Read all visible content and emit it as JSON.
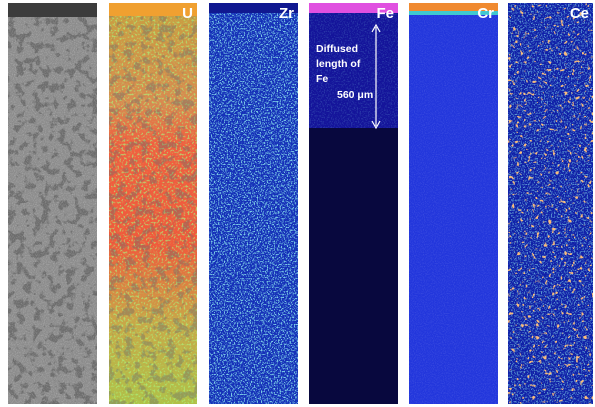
{
  "element_maps": [
    {
      "label": "U"
    },
    {
      "label": "Zr"
    },
    {
      "label": "Fe"
    },
    {
      "label": "Cr"
    },
    {
      "label": "Ce"
    }
  ],
  "annotation": {
    "lines": [
      "Diffused",
      "length of",
      "Fe"
    ],
    "length": "560 μm"
  }
}
